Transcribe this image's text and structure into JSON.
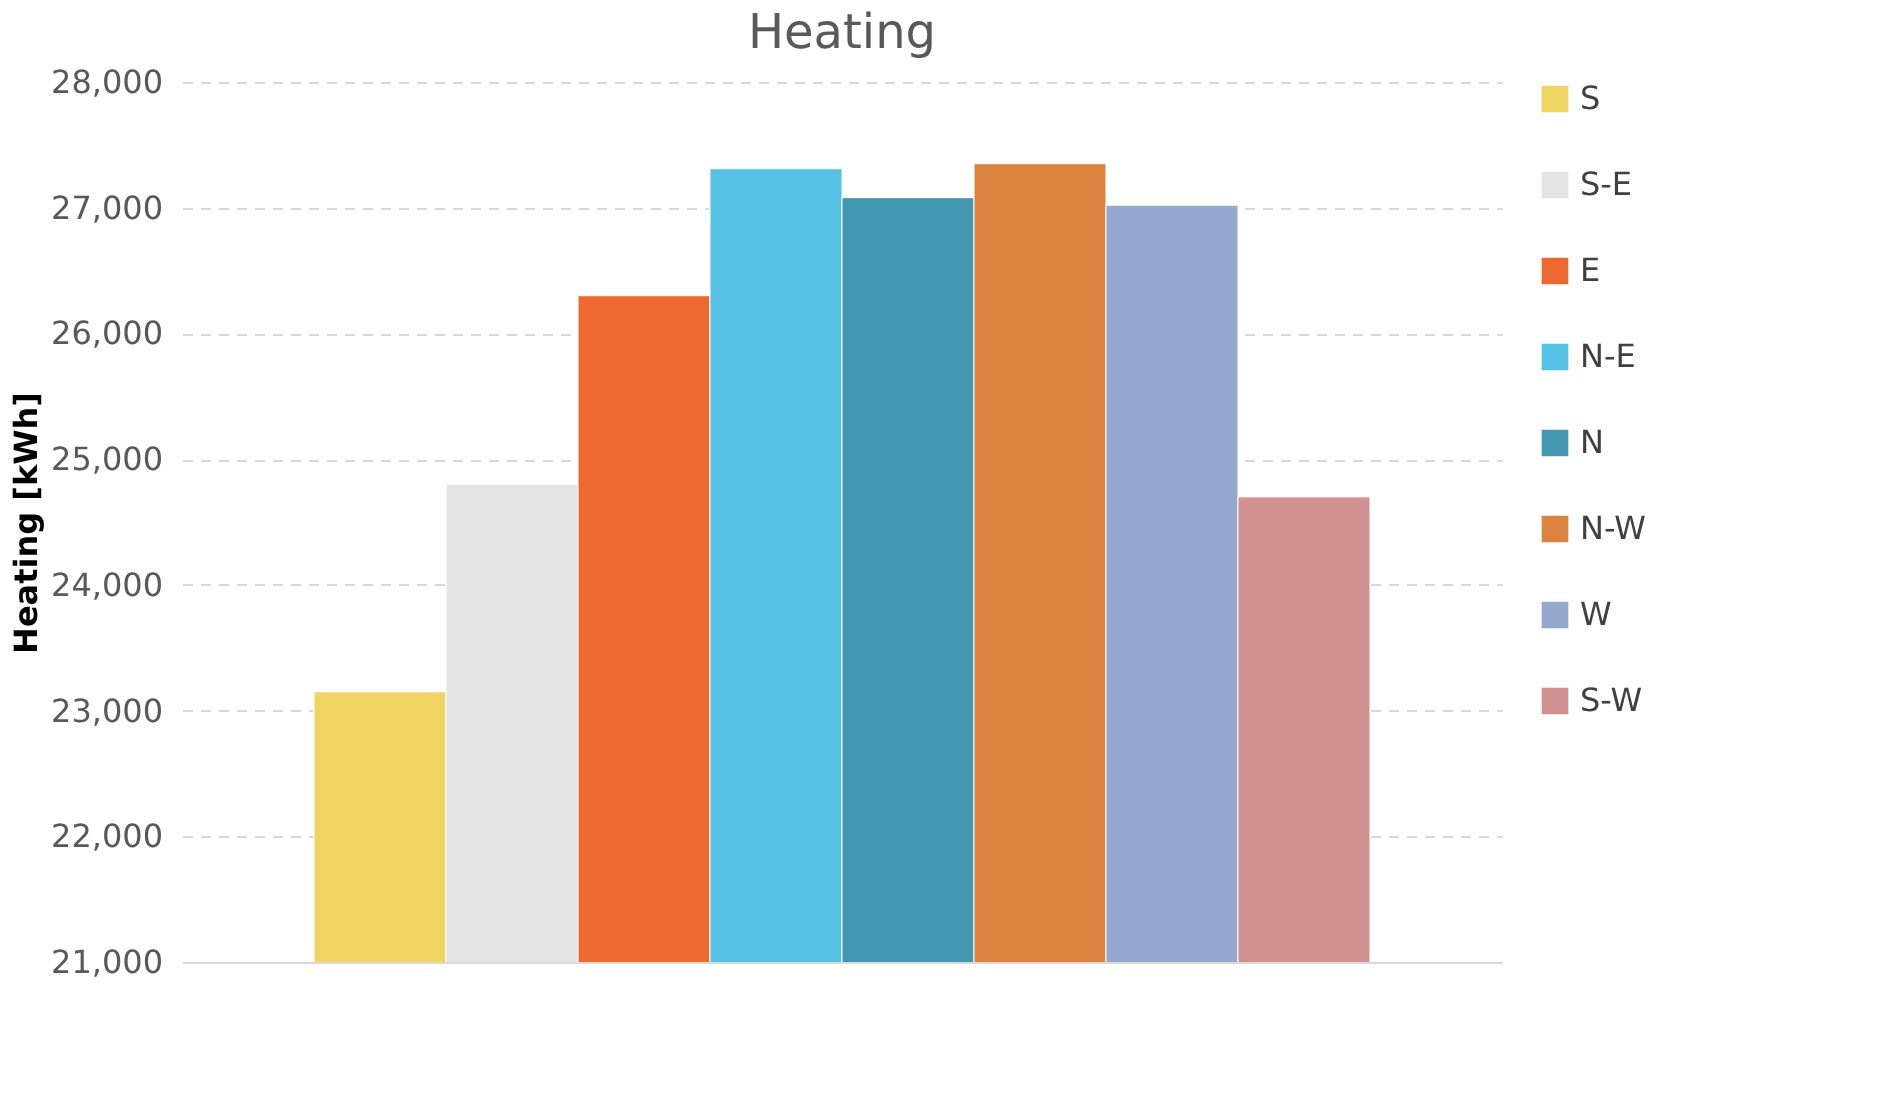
{
  "chart_data": {
    "type": "bar",
    "title": "Heating",
    "ylabel": "Heating [kWh]",
    "categories": [
      null
    ],
    "series": [
      {
        "name": "S",
        "color": "#f0d461",
        "values": [
          23150
        ]
      },
      {
        "name": "S-E",
        "color": "#e4e4e4",
        "values": [
          24800
        ]
      },
      {
        "name": "E",
        "color": "#ed6930",
        "values": [
          26300
        ]
      },
      {
        "name": "N-E",
        "color": "#55c1e5",
        "values": [
          27310
        ]
      },
      {
        "name": "N",
        "color": "#4397b0",
        "values": [
          27080
        ]
      },
      {
        "name": "N-W",
        "color": "#db833f",
        "values": [
          27350
        ]
      },
      {
        "name": "W",
        "color": "#95a9cf",
        "values": [
          27020
        ]
      },
      {
        "name": "S-W",
        "color": "#d19190",
        "values": [
          24700
        ]
      }
    ],
    "ylim": [
      21000,
      28000
    ],
    "yticks": [
      {
        "value": 21000,
        "label": "21,000"
      },
      {
        "value": 22000,
        "label": "22,000"
      },
      {
        "value": 23000,
        "label": "23,000"
      },
      {
        "value": 24000,
        "label": "24,000"
      },
      {
        "value": 25000,
        "label": "25,000"
      },
      {
        "value": 26000,
        "label": "26,000"
      },
      {
        "value": 27000,
        "label": "27,000"
      },
      {
        "value": 28000,
        "label": "28,000"
      }
    ],
    "grid": "y",
    "legend": "right"
  }
}
